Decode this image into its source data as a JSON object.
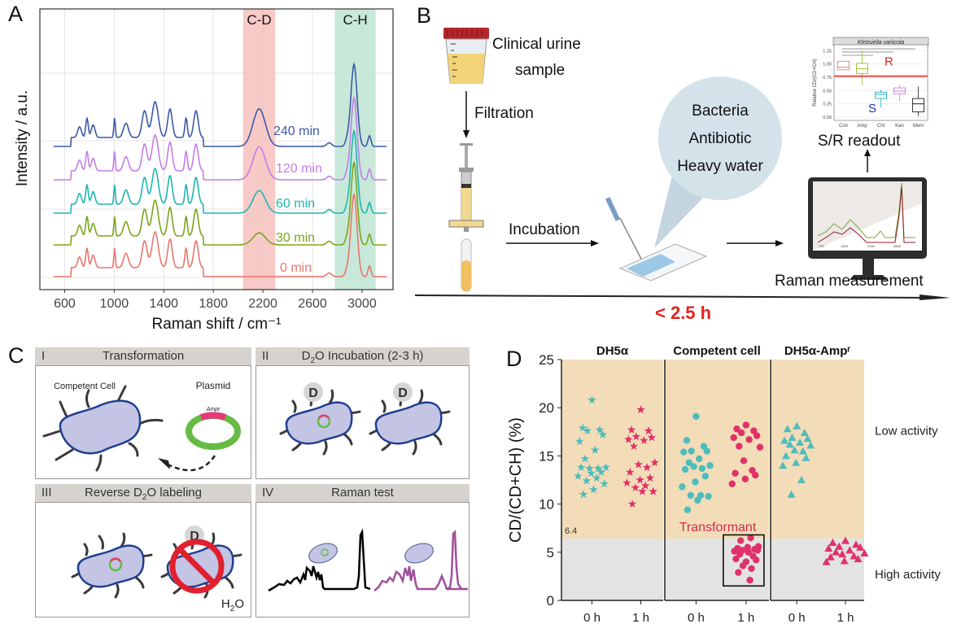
{
  "panelA": {
    "letter": "A",
    "band_labels": [
      "C-D",
      "C-H"
    ],
    "chart_data": {
      "type": "line",
      "title": "",
      "xlabel": "Raman shift / cm⁻¹",
      "ylabel": "Intensity / a.u.",
      "xlim": [
        400,
        3250
      ],
      "xticks": [
        600,
        1000,
        1400,
        1800,
        2200,
        2600,
        3000
      ],
      "grid": true,
      "highlight_bands": [
        {
          "label": "C-D",
          "range": [
            2040,
            2300
          ],
          "color": "#f4b8b4"
        },
        {
          "label": "C-H",
          "range": [
            2780,
            3110
          ],
          "color": "#b6e2cd"
        }
      ],
      "series": [
        {
          "name": "0 min",
          "color": "#e8766d",
          "offset": 0,
          "cd_peak": 0.0
        },
        {
          "name": "30 min",
          "color": "#7ca51a",
          "offset": 1,
          "cd_peak": 0.08
        },
        {
          "name": "60 min",
          "color": "#1fb6b1",
          "offset": 2,
          "cd_peak": 0.15
        },
        {
          "name": "120 min",
          "color": "#c47de8",
          "offset": 3,
          "cd_peak": 0.22
        },
        {
          "name": "240 min",
          "color": "#3c5aa6",
          "offset": 4,
          "cd_peak": 0.25
        }
      ]
    }
  },
  "panelB": {
    "letter": "B",
    "labels": {
      "sample": "Clinical urine\nsample",
      "sample_line1": "Clinical urine",
      "sample_line2": "sample",
      "filtration": "Filtration",
      "incubation": "Incubation",
      "bubble": [
        "Bacteria",
        "Antibiotic",
        "Heavy water"
      ],
      "raman": "Raman measurement",
      "readout": "S/R readout",
      "time": "< 2.5 h"
    },
    "inset_chart": {
      "type": "box",
      "title": "Klebsiella variicola",
      "ylabel": "Relative CD/(CD+CH)",
      "yticks": [
        "0.00",
        "0.25",
        "0.50",
        "0.75",
        "1.00",
        "1.25"
      ],
      "categories": [
        "Con",
        "Amp",
        "Chl",
        "Kan",
        "Mem"
      ],
      "colors": [
        "#f08080",
        "#9bbb30",
        "#20b2c0",
        "#c77be0",
        "#222222"
      ],
      "medians": [
        0.94,
        0.91,
        0.43,
        0.49,
        0.25
      ],
      "q1": [
        0.89,
        0.82,
        0.35,
        0.44,
        0.1
      ],
      "q3": [
        1.05,
        1.01,
        0.47,
        0.55,
        0.35
      ],
      "whisker_low": [
        0.89,
        0.6,
        0.18,
        0.3,
        0.02
      ],
      "whisker_high": [
        1.05,
        1.25,
        0.52,
        0.6,
        0.58
      ],
      "threshold": 0.77,
      "R_label": "R",
      "S_label": "S"
    },
    "monitor_ticks": [
      "700",
      "1400",
      "2100",
      "2800"
    ],
    "monitor_xlabel": "Raman shift / cm⁻¹"
  },
  "panelC": {
    "letter": "C",
    "boxes": [
      {
        "roman": "I",
        "title": "Transformation",
        "labels": [
          "Competent Cell",
          "Plasmid",
          "Ampr"
        ]
      },
      {
        "roman": "II",
        "title_pre": "D",
        "title_sub": "2",
        "title_post": "O Incubation (2-3 h)",
        "badge": "D"
      },
      {
        "roman": "III",
        "title_pre": "Reverse D",
        "title_sub": "2",
        "title_post": "O labeling",
        "badge": "D",
        "corner_pre": "H",
        "corner_sub": "2",
        "corner_post": "O"
      },
      {
        "roman": "IV",
        "title": "Raman test"
      }
    ]
  },
  "panelD": {
    "letter": "D",
    "chart_data": {
      "type": "scatter",
      "ylabel": "CD/(CD+CH) (%)",
      "ylim": [
        0,
        25
      ],
      "yticks": [
        0,
        5,
        10,
        15,
        20,
        25
      ],
      "threshold": 6.4,
      "threshold_label": "6.4",
      "region_labels": {
        "upper": "Low activity",
        "lower": "High activity"
      },
      "annotation": "Transformant",
      "colors": {
        "0h": "#4fbcbc",
        "1h": "#e0326a",
        "low_bg": "#f2ddb8",
        "high_bg": "#e3e3e3"
      },
      "groups": [
        {
          "title": "DH5α",
          "marker": "star",
          "categories": [
            "0 h",
            "1 h"
          ],
          "values": [
            [
              20.8,
              17.9,
              17.7,
              17.6,
              17.2,
              16.5,
              15.6,
              14.7,
              13.8,
              13.7,
              13.7,
              13.8,
              13.3,
              13.2,
              12.9,
              12.7,
              12.4,
              12.1,
              11.5,
              11.0
            ],
            [
              19.8,
              17.7,
              17.6,
              17.0,
              16.9,
              16.7,
              16.6,
              16.0,
              14.3,
              14.1,
              13.8,
              13.3,
              12.7,
              12.5,
              12.2,
              11.9,
              11.7,
              11.3,
              11.3,
              10.0
            ]
          ]
        },
        {
          "title": "Competent cell",
          "marker": "circle",
          "categories": [
            "0 h",
            "1 h"
          ],
          "values": [
            [
              19.1,
              16.6,
              16.0,
              15.5,
              15.5,
              15.4,
              14.7,
              14.3,
              14.0,
              13.9,
              13.7,
              13.6,
              12.9,
              12.3,
              11.8,
              10.9,
              10.9,
              10.8,
              10.4,
              9.4
            ],
            [
              18.2,
              17.8,
              17.6,
              17.4,
              17.1,
              16.9,
              16.7,
              16.0,
              15.9,
              14.5,
              13.5,
              13.2,
              13.0,
              12.6,
              12.1,
              6.5,
              6.2,
              5.6,
              5.5,
              5.4,
              5.3,
              5.2,
              5.2,
              5.1,
              5.0,
              4.8,
              4.6,
              4.3,
              4.2,
              4.0,
              3.6,
              3.3,
              2.9,
              2.1
            ]
          ]
        },
        {
          "title": "DH5α-Ampʳ",
          "marker": "triangle",
          "categories": [
            "0 h",
            "1 h"
          ],
          "values": [
            [
              18.1,
              17.8,
              17.4,
              16.9,
              16.8,
              16.6,
              16.4,
              16.2,
              16.1,
              15.6,
              15.5,
              15.0,
              14.8,
              14.3,
              14.0,
              12.5,
              11.0
            ],
            [
              6.2,
              6.0,
              5.8,
              5.6,
              5.5,
              5.4,
              5.2,
              5.0,
              4.9,
              4.8,
              4.6,
              4.5,
              4.3,
              4.1,
              4.0
            ]
          ]
        }
      ]
    }
  }
}
